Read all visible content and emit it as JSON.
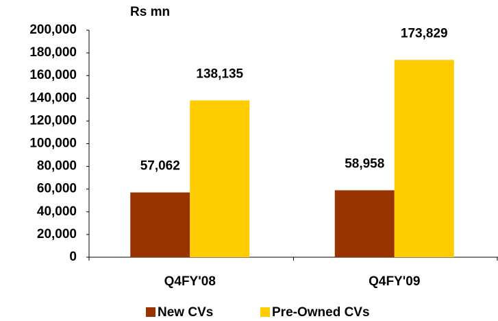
{
  "chart_data": {
    "type": "bar",
    "y_axis_label": "Rs mn",
    "categories": [
      "Q4FY'08",
      "Q4FY'09"
    ],
    "series": [
      {
        "name": "New CVs",
        "color": "#993300",
        "values": [
          57062,
          58958
        ],
        "value_labels": [
          "57,062",
          "58,958"
        ]
      },
      {
        "name": "Pre-Owned CVs",
        "color": "#FFCC00",
        "values": [
          138135,
          173829
        ],
        "value_labels": [
          "138,135",
          "173,829"
        ]
      }
    ],
    "ylim": [
      0,
      200000
    ],
    "yticks": [
      0,
      {
        "value": 20000,
        "label": "20,000"
      },
      {
        "value": 40000,
        "label": "40,000"
      },
      {
        "value": 60000,
        "label": "60,000"
      },
      {
        "value": 80000,
        "label": "80,000"
      },
      {
        "value": 100000,
        "label": "100,000"
      },
      {
        "value": 120000,
        "label": "120,000"
      },
      {
        "value": 140000,
        "label": "140,000"
      },
      {
        "value": 160000,
        "label": "160,000"
      },
      {
        "value": 180000,
        "label": "180,000"
      },
      {
        "value": 200000,
        "label": "200,000"
      }
    ],
    "legend": "bottom"
  }
}
